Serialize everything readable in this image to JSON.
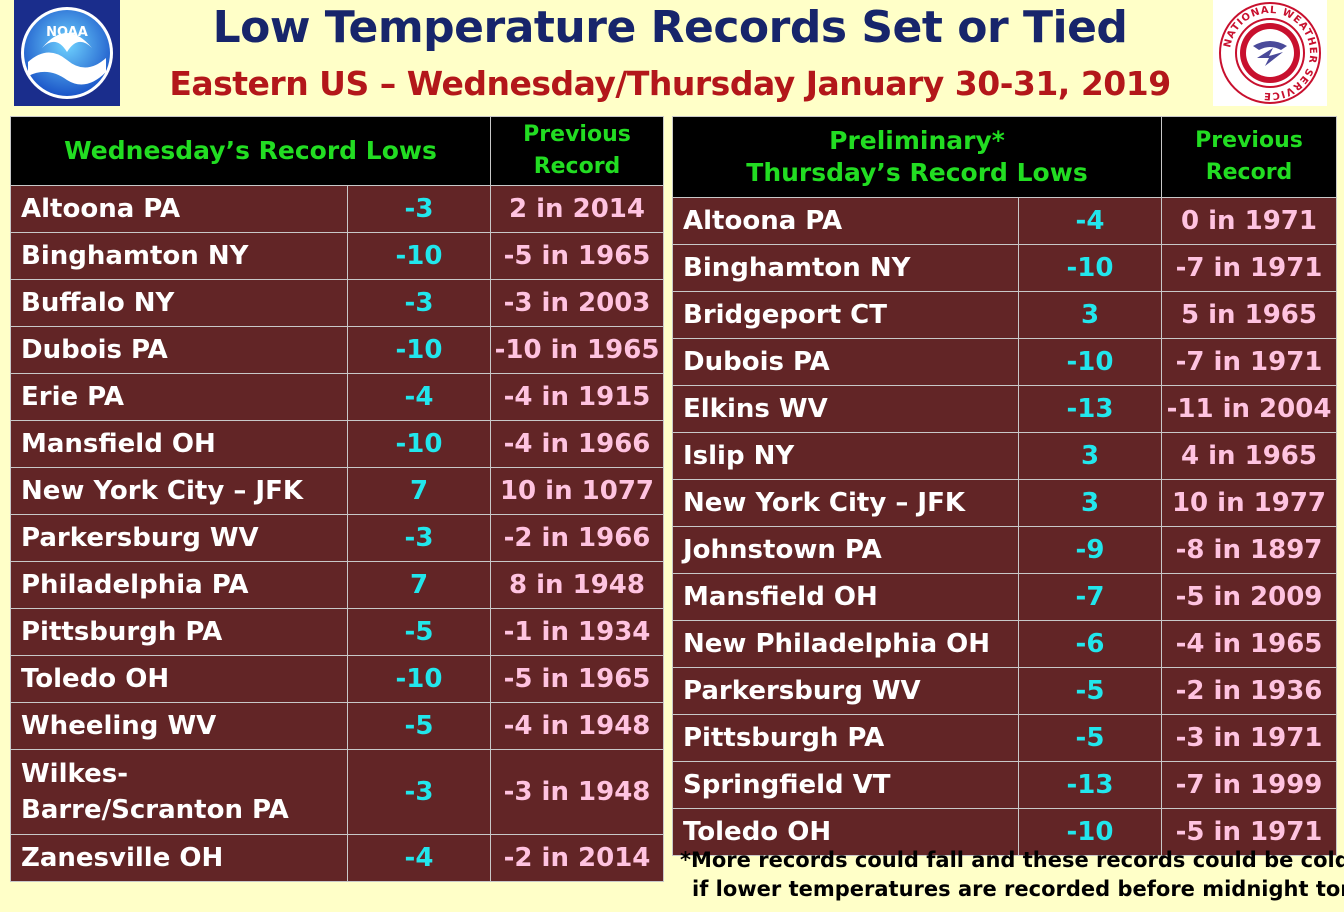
{
  "header": {
    "title": "Low Temperature Records Set or Tied",
    "subtitle": "Eastern US – Wednesday/Thursday January 30-31, 2019",
    "noaa_logo_text": "NOAA",
    "nws_logo_text": "NATIONAL WEATHER SERVICE"
  },
  "wednesday": {
    "header": "Wednesday’s Record Lows",
    "prev_header_1": "Previous",
    "prev_header_2": "Record",
    "rows": [
      {
        "city": "Altoona PA",
        "low": "-3",
        "prev": "2 in 2014"
      },
      {
        "city": "Binghamton NY",
        "low": "-10",
        "prev": "-5 in 1965"
      },
      {
        "city": "Buffalo NY",
        "low": "-3",
        "prev": "-3 in 2003"
      },
      {
        "city": "Dubois PA",
        "low": "-10",
        "prev": "-10 in 1965"
      },
      {
        "city": "Erie PA",
        "low": "-4",
        "prev": "-4 in 1915"
      },
      {
        "city": "Mansfield OH",
        "low": "-10",
        "prev": "-4 in 1966"
      },
      {
        "city": "New York City – JFK",
        "low": "7",
        "prev": "10 in 1077"
      },
      {
        "city": "Parkersburg WV",
        "low": "-3",
        "prev": "-2 in 1966"
      },
      {
        "city": "Philadelphia PA",
        "low": "7",
        "prev": "8 in 1948"
      },
      {
        "city": "Pittsburgh PA",
        "low": "-5",
        "prev": "-1 in 1934"
      },
      {
        "city": "Toledo OH",
        "low": "-10",
        "prev": "-5 in 1965"
      },
      {
        "city": "Wheeling WV",
        "low": "-5",
        "prev": "-4 in 1948"
      },
      {
        "city": "Wilkes-Barre/Scranton PA",
        "low": "-3",
        "prev": "-3 in 1948"
      },
      {
        "city": "Zanesville OH",
        "low": "-4",
        "prev": "-2 in 2014"
      }
    ]
  },
  "thursday": {
    "header_1": "Preliminary*",
    "header_2": "Thursday’s Record Lows",
    "prev_header_1": "Previous",
    "prev_header_2": "Record",
    "rows": [
      {
        "city": "Altoona PA",
        "low": "-4",
        "prev": "0 in 1971"
      },
      {
        "city": "Binghamton NY",
        "low": "-10",
        "prev": "-7 in 1971"
      },
      {
        "city": "Bridgeport CT",
        "low": "3",
        "prev": "5 in 1965"
      },
      {
        "city": "Dubois PA",
        "low": "-10",
        "prev": "-7 in 1971"
      },
      {
        "city": "Elkins WV",
        "low": "-13",
        "prev": "-11 in 2004"
      },
      {
        "city": "Islip NY",
        "low": "3",
        "prev": "4 in 1965"
      },
      {
        "city": "New York City – JFK",
        "low": "3",
        "prev": "10 in 1977"
      },
      {
        "city": "Johnstown PA",
        "low": "-9",
        "prev": "-8 in 1897"
      },
      {
        "city": "Mansfield OH",
        "low": "-7",
        "prev": "-5 in 2009"
      },
      {
        "city": "New Philadelphia OH",
        "low": "-6",
        "prev": "-4 in 1965"
      },
      {
        "city": "Parkersburg WV",
        "low": "-5",
        "prev": "-2 in 1936"
      },
      {
        "city": "Pittsburgh PA",
        "low": "-5",
        "prev": "-3 in 1971"
      },
      {
        "city": "Springfield VT",
        "low": "-13",
        "prev": "-7 in 1999"
      },
      {
        "city": "Toledo OH",
        "low": "-10",
        "prev": "-5 in 1971"
      }
    ]
  },
  "footnote": {
    "line1": "*More records could fall and these records could be colder",
    "line2": "if lower temperatures are recorded before midnight tonight"
  },
  "colors": {
    "background": "#ffffc8",
    "title": "#17256b",
    "subtitle": "#b3171a",
    "header_bg": "#000000",
    "header_text": "#22dd22",
    "row_bg": "#622526",
    "city_text": "#ffffff",
    "low_text": "#22e6ec",
    "prev_text": "#ffc3e0"
  }
}
